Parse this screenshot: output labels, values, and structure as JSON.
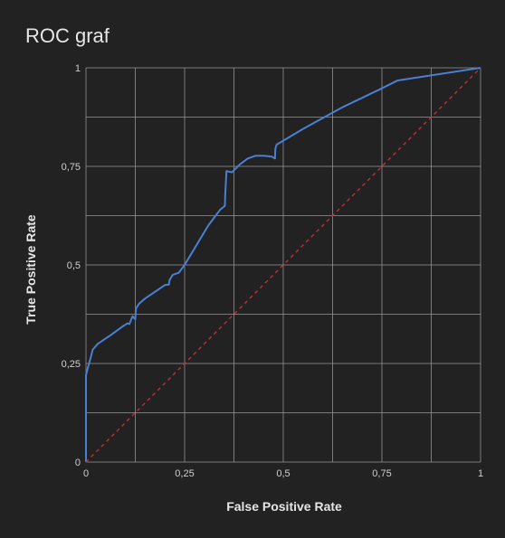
{
  "chart_data": {
    "type": "line",
    "title": "ROC graf",
    "xlabel": "False Positive Rate",
    "ylabel": "True Positive Rate",
    "xlim": [
      0,
      1
    ],
    "ylim": [
      0,
      1
    ],
    "x_ticks": [
      {
        "value": 0,
        "label": "0"
      },
      {
        "value": 0.25,
        "label": "0,25"
      },
      {
        "value": 0.5,
        "label": "0,5"
      },
      {
        "value": 0.75,
        "label": "0,75"
      },
      {
        "value": 1,
        "label": "1"
      }
    ],
    "y_ticks": [
      {
        "value": 0,
        "label": "0"
      },
      {
        "value": 0.25,
        "label": "0,25"
      },
      {
        "value": 0.5,
        "label": "0,5"
      },
      {
        "value": 0.75,
        "label": "0,75"
      },
      {
        "value": 1,
        "label": "1"
      }
    ],
    "grid": true,
    "grid_step": 0.125,
    "legend": "none",
    "colors": {
      "background": "#222222",
      "grid": "#9a9a9a",
      "roc_line": "#4a7fd4",
      "diagonal": "#cc2b2b",
      "text": "#e6e6e6"
    },
    "series": [
      {
        "style": "solid",
        "x": [
          0,
          0,
          0.005,
          0.012,
          0.017,
          0.03,
          0.06,
          0.09,
          0.105,
          0.11,
          0.118,
          0.125,
          0.126,
          0.127,
          0.135,
          0.15,
          0.175,
          0.2,
          0.21,
          0.212,
          0.22,
          0.235,
          0.25,
          0.28,
          0.31,
          0.34,
          0.352,
          0.353,
          0.356,
          0.37,
          0.39,
          0.41,
          0.43,
          0.45,
          0.47,
          0.479,
          0.48,
          0.483,
          0.55,
          0.65,
          0.75,
          0.79,
          1.0
        ],
        "y": [
          0,
          0.22,
          0.24,
          0.265,
          0.285,
          0.3,
          0.32,
          0.342,
          0.352,
          0.35,
          0.37,
          0.362,
          0.38,
          0.39,
          0.402,
          0.415,
          0.432,
          0.449,
          0.45,
          0.462,
          0.475,
          0.48,
          0.5,
          0.55,
          0.6,
          0.64,
          0.65,
          0.68,
          0.738,
          0.735,
          0.755,
          0.77,
          0.777,
          0.777,
          0.775,
          0.77,
          0.795,
          0.805,
          0.845,
          0.9,
          0.948,
          0.968,
          1.0
        ]
      },
      {
        "style": "dashed",
        "x": [
          0,
          1
        ],
        "y": [
          0,
          1
        ]
      }
    ]
  }
}
